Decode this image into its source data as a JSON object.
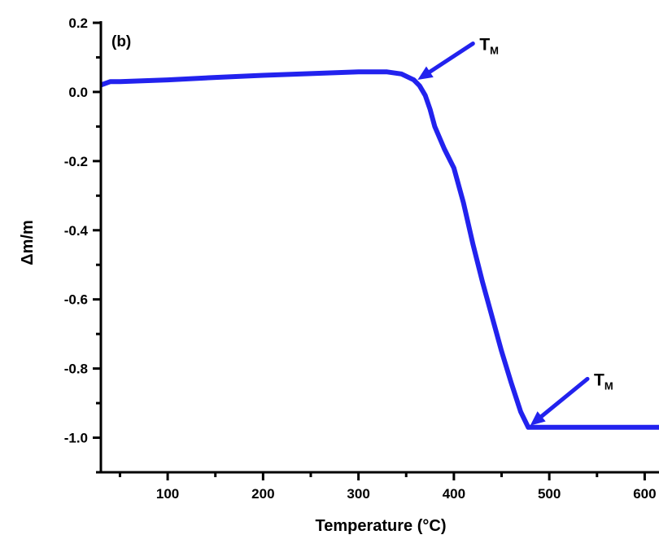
{
  "chart_data": {
    "type": "line",
    "panel_label": "(b)",
    "xlabel": "Temperature (°C)",
    "ylabel": "Δm/m",
    "xlim": [
      30,
      615
    ],
    "ylim": [
      -1.1,
      0.2
    ],
    "xticks": [
      100,
      200,
      300,
      400,
      500,
      600
    ],
    "xtick_labels": [
      "100",
      "200",
      "300",
      "400",
      "500",
      "600"
    ],
    "yticks": [
      0.2,
      0.0,
      -0.2,
      -0.4,
      -0.6,
      -0.8,
      -1.0
    ],
    "ytick_labels": [
      "0.2",
      "0.0",
      "-0.2",
      "-0.4",
      "-0.6",
      "-0.8",
      "-1.0"
    ],
    "grid": false,
    "color": "#2222ee",
    "series": [
      {
        "x": [
          30,
          40,
          50,
          100,
          150,
          200,
          250,
          300,
          330,
          345,
          358,
          364,
          370,
          375,
          380,
          390,
          400,
          410,
          420,
          430,
          440,
          450,
          460,
          470,
          478,
          482,
          490,
          500,
          550,
          615
        ],
        "y": [
          0.02,
          0.03,
          0.03,
          0.035,
          0.042,
          0.048,
          0.053,
          0.058,
          0.058,
          0.052,
          0.035,
          0.018,
          -0.01,
          -0.05,
          -0.1,
          -0.165,
          -0.22,
          -0.32,
          -0.44,
          -0.55,
          -0.65,
          -0.75,
          -0.84,
          -0.925,
          -0.97,
          -0.97,
          -0.97,
          -0.97,
          -0.97,
          -0.97
        ]
      }
    ],
    "annotations": [
      {
        "main": "T",
        "sub": "M",
        "x": 362,
        "y": 0.035,
        "text_x": 420,
        "text_y": 0.14
      },
      {
        "main": "T",
        "sub": "M",
        "x": 480,
        "y": -0.965,
        "text_x": 540,
        "text_y": -0.83
      }
    ]
  }
}
